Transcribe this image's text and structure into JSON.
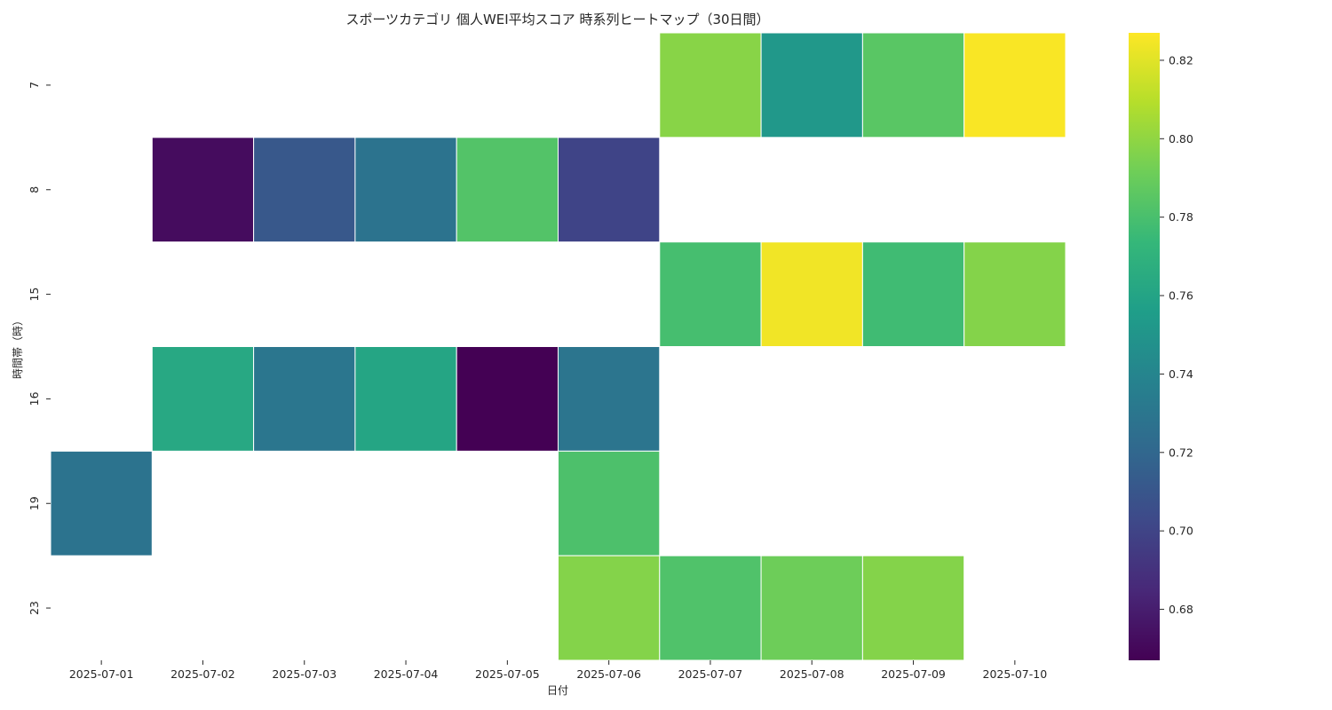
{
  "chart_data": {
    "type": "heatmap",
    "title": "スポーツカテゴリ 個人WEI平均スコア 時系列ヒートマップ（30日間）",
    "xlabel": "日付",
    "ylabel": "時間帯（時）",
    "x_categories": [
      "2025-07-01",
      "2025-07-02",
      "2025-07-03",
      "2025-07-04",
      "2025-07-05",
      "2025-07-06",
      "2025-07-07",
      "2025-07-08",
      "2025-07-09",
      "2025-07-10"
    ],
    "y_categories": [
      "7",
      "8",
      "15",
      "16",
      "19",
      "23"
    ],
    "values": [
      [
        null,
        null,
        null,
        null,
        null,
        null,
        0.798,
        0.752,
        0.785,
        0.826
      ],
      [
        null,
        0.672,
        0.711,
        0.728,
        0.783,
        0.7,
        null,
        null,
        null,
        null
      ],
      [
        null,
        null,
        null,
        null,
        null,
        null,
        0.779,
        0.824,
        0.777,
        0.797
      ],
      [
        null,
        0.763,
        0.73,
        0.761,
        0.667,
        0.729,
        null,
        null,
        null,
        null
      ],
      [
        0.728,
        null,
        null,
        null,
        null,
        0.781,
        null,
        null,
        null,
        null
      ],
      [
        null,
        null,
        null,
        null,
        null,
        0.797,
        0.782,
        0.791,
        0.797,
        null
      ]
    ],
    "colormap": "viridis",
    "vmin": 0.667,
    "vmax": 0.827,
    "colorbar_ticks": [
      0.68,
      0.7,
      0.72,
      0.74,
      0.76,
      0.78,
      0.8,
      0.82
    ],
    "colorbar_tick_labels": [
      "0.68",
      "0.70",
      "0.72",
      "0.74",
      "0.76",
      "0.78",
      "0.80",
      "0.82"
    ],
    "cell_border_color": "#ffffff",
    "grid": false
  }
}
